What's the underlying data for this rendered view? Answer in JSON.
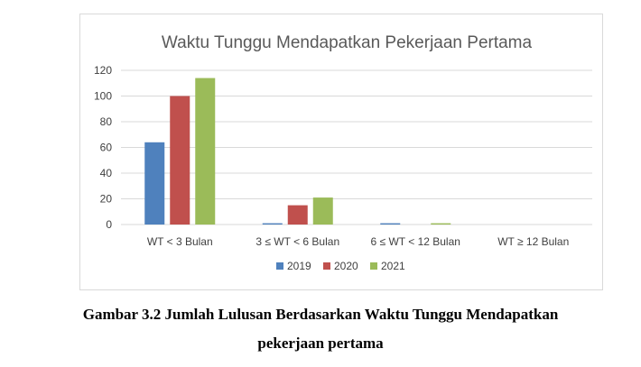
{
  "chart_data": {
    "type": "bar",
    "title": "Waktu Tunggu Mendapatkan Pekerjaan Pertama",
    "categories": [
      "WT < 3 Bulan",
      "3 ≤ WT < 6 Bulan",
      "6 ≤ WT < 12 Bulan",
      "WT ≥ 12 Bulan"
    ],
    "series": [
      {
        "name": "2019",
        "color": "#4f81bd",
        "values": [
          64,
          1,
          1,
          0
        ]
      },
      {
        "name": "2020",
        "color": "#c0504d",
        "values": [
          100,
          15,
          0,
          0
        ]
      },
      {
        "name": "2021",
        "color": "#9bbb59",
        "values": [
          114,
          21,
          1,
          0
        ]
      }
    ],
    "ylim": [
      0,
      120
    ],
    "yticks": [
      "0",
      "20",
      "40",
      "60",
      "80",
      "100",
      "120"
    ],
    "grid": true,
    "legend_position": "bottom"
  },
  "caption": {
    "line1": "Gambar 3.2 Jumlah Lulusan Berdasarkan Waktu Tunggu Mendapatkan",
    "line2": "pekerjaan pertama"
  }
}
